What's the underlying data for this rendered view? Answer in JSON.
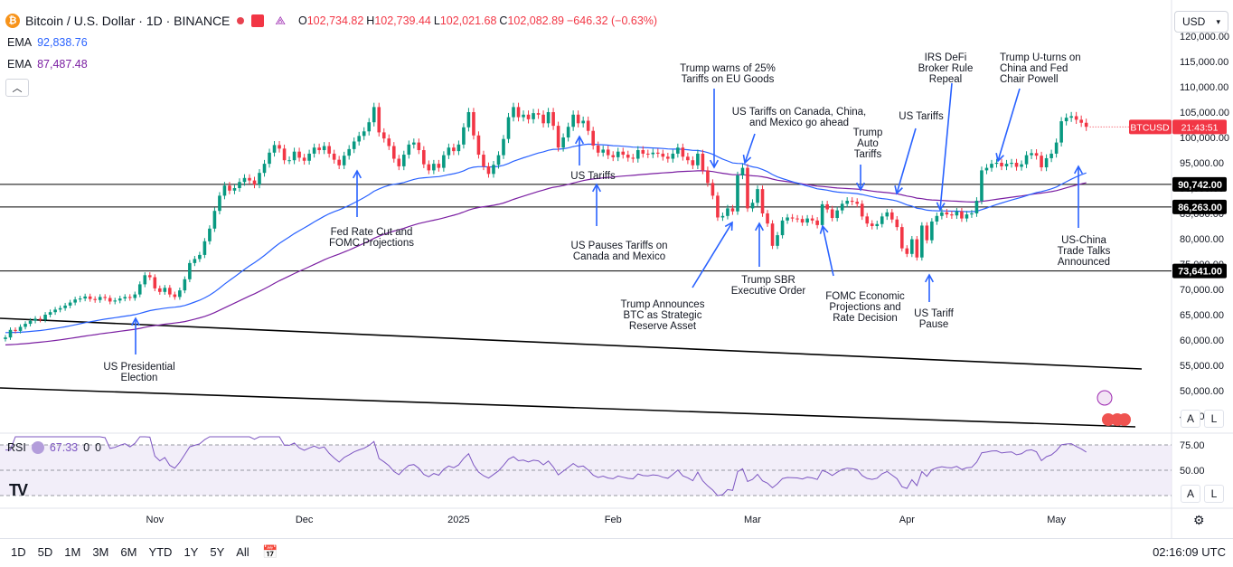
{
  "header": {
    "coin_symbol": "₿",
    "title": "Bitcoin / U.S. Dollar · 1D · BINANCE",
    "ohlc": [
      {
        "k": "O",
        "v": "102,734.82"
      },
      {
        "k": "H",
        "v": "102,739.44"
      },
      {
        "k": "L",
        "v": "102,021.68"
      },
      {
        "k": "C",
        "v": "102,082.89"
      },
      {
        "k": "",
        "v": "−646.32 (−0.63%)"
      }
    ],
    "status_color": "#f23645"
  },
  "indicators": {
    "ema1": {
      "name": "EMA",
      "value": "92,838.76",
      "color": "#2962ff"
    },
    "ema2": {
      "name": "EMA",
      "value": "87,487.48",
      "color": "#7b1fa2"
    },
    "rsi": {
      "name": "RSI",
      "value": "67.33",
      "extra1": "0",
      "extra2": "0"
    }
  },
  "currency_select": "USD",
  "collapse_icon": "chevron-up-icon",
  "chart_data": {
    "type": "candlestick",
    "symbol_label": "BTCUSD",
    "countdown": "21:43:51",
    "last_price": "102,082.89",
    "y_ticks": [
      "120,000.00",
      "115,000.00",
      "110,000.00",
      "105,000.00",
      "100,000.00",
      "95,000.00",
      "90,000.00",
      "85,000.00",
      "80,000.00",
      "75,000.00",
      "70,000.00",
      "65,000.00",
      "60,000.00",
      "55,000.00",
      "50,000.00",
      "45,000.00"
    ],
    "ylim": [
      42000,
      121500
    ],
    "x_ticks": [
      {
        "label": "Nov",
        "bar": 30
      },
      {
        "label": "Dec",
        "bar": 60
      },
      {
        "label": "2025",
        "bar": 91
      },
      {
        "label": "Feb",
        "bar": 122
      },
      {
        "label": "Mar",
        "bar": 150
      },
      {
        "label": "Apr",
        "bar": 181
      },
      {
        "label": "May",
        "bar": 211
      }
    ],
    "levels": [
      {
        "value": 90742,
        "label": "90,742.00"
      },
      {
        "value": 86263,
        "label": "86,263.00"
      },
      {
        "value": 73641,
        "label": "73,641.00"
      }
    ],
    "closes": [
      60500,
      62000,
      61800,
      62600,
      63200,
      63800,
      64200,
      64000,
      65000,
      65500,
      66000,
      66300,
      66800,
      67400,
      68000,
      68200,
      68600,
      68100,
      67900,
      68500,
      68300,
      67600,
      67800,
      68200,
      68500,
      68300,
      69000,
      71000,
      72800,
      72400,
      70200,
      69500,
      70300,
      69000,
      68500,
      69800,
      72000,
      75200,
      76000,
      76800,
      79500,
      82000,
      85500,
      88500,
      90500,
      89500,
      90000,
      91200,
      92000,
      91500,
      90700,
      93000,
      94800,
      97000,
      98500,
      97800,
      95500,
      95500,
      97200,
      96000,
      95400,
      96800,
      98000,
      97500,
      98300,
      96800,
      95600,
      94500,
      96400,
      97700,
      99200,
      100300,
      101200,
      103000,
      106000,
      101000,
      99800,
      98300,
      95800,
      94300,
      96600,
      98600,
      99000,
      97500,
      94700,
      93500,
      94800,
      94000,
      96500,
      98000,
      97300,
      98600,
      102000,
      105000,
      100400,
      96600,
      94300,
      92800,
      94600,
      96500,
      99700,
      104000,
      106000,
      104000,
      104500,
      103600,
      104800,
      104500,
      102800,
      105000,
      102300,
      98000,
      100000,
      102100,
      104500,
      102800,
      103300,
      101300,
      98400,
      97000,
      97600,
      96500,
      96100,
      97200,
      96600,
      96000,
      95800,
      97500,
      96800,
      96700,
      97000,
      96800,
      96200,
      95800,
      96800,
      98000,
      96200,
      95500,
      94500,
      96800,
      93500,
      91000,
      88500,
      84200,
      84500,
      86000,
      85400,
      92500,
      94000,
      86000,
      87100,
      89800,
      85000,
      83000,
      78600,
      80700,
      83600,
      84200,
      84000,
      83900,
      83200,
      84000,
      83600,
      82700,
      86800,
      85800,
      84100,
      85600,
      86900,
      87500,
      87300,
      86900,
      84400,
      83000,
      82500,
      82900,
      84400,
      85200,
      83800,
      82300,
      78100,
      77000,
      79900,
      76300,
      82600,
      79700,
      83400,
      84500,
      85200,
      84800,
      84600,
      85400,
      84000,
      84800,
      85000,
      87500,
      93500,
      94000,
      94800,
      95000,
      94300,
      94800,
      95000,
      94200,
      94700,
      96500,
      96900,
      96400,
      94100,
      95900,
      96800,
      99000,
      103200,
      103900,
      104200,
      103500,
      102900,
      102100
    ],
    "rsi_ticks": [
      "75.00",
      "50.00"
    ],
    "ema_note": "EMA lines computed from closes"
  },
  "annotations": [
    {
      "id": "us-presidential-election",
      "lines": [
        "US Presidential",
        "Election"
      ]
    },
    {
      "id": "fed-rate-cut",
      "lines": [
        "Fed Rate Cut and",
        "FOMC Projections"
      ]
    },
    {
      "id": "us-tariffs-jan",
      "lines": [
        "US Tariffs"
      ]
    },
    {
      "id": "us-pauses-tariffs",
      "lines": [
        "US Pauses Tariffs on",
        "Canada and Mexico"
      ]
    },
    {
      "id": "trump-warns",
      "lines": [
        "Trump warns of 25%",
        "Tariffs on EU Goods"
      ]
    },
    {
      "id": "us-tariffs-canada",
      "lines": [
        "US Tariffs on Canada, China,",
        "and Mexico go ahead"
      ]
    },
    {
      "id": "trump-announces-btc",
      "lines": [
        "Trump Announces",
        "BTC as Strategic",
        "Reserve Asset"
      ]
    },
    {
      "id": "trump-sbr",
      "lines": [
        "Trump SBR",
        "Executive Order"
      ]
    },
    {
      "id": "trump-auto-tariffs",
      "lines": [
        "Trump",
        "Auto",
        "Tariffs"
      ]
    },
    {
      "id": "fomc-economic",
      "lines": [
        "FOMC Economic",
        "Projections and",
        "Rate Decision"
      ]
    },
    {
      "id": "us-tariffs-apr",
      "lines": [
        "US Tariffs"
      ]
    },
    {
      "id": "irs-defi",
      "lines": [
        "IRS DeFi",
        "Broker Rule",
        "Repeal"
      ]
    },
    {
      "id": "us-tariff-pause",
      "lines": [
        "US Tariff",
        "Pause"
      ]
    },
    {
      "id": "trump-u-turns",
      "lines": [
        "Trump U-turns on",
        "China and Fed",
        "Chair Powell"
      ]
    },
    {
      "id": "us-china-trade",
      "lines": [
        "US-China",
        "Trade Talks",
        "Announced"
      ]
    }
  ],
  "footer": {
    "ranges": [
      "1D",
      "5D",
      "1M",
      "3M",
      "6M",
      "YTD",
      "1Y",
      "5Y",
      "All"
    ],
    "calendar_icon": "calendar-range-icon",
    "clock": "02:16:09 UTC",
    "auto_label": "A",
    "log_label": "L",
    "settings_icon": "gear-icon",
    "logo_text": "TV"
  }
}
